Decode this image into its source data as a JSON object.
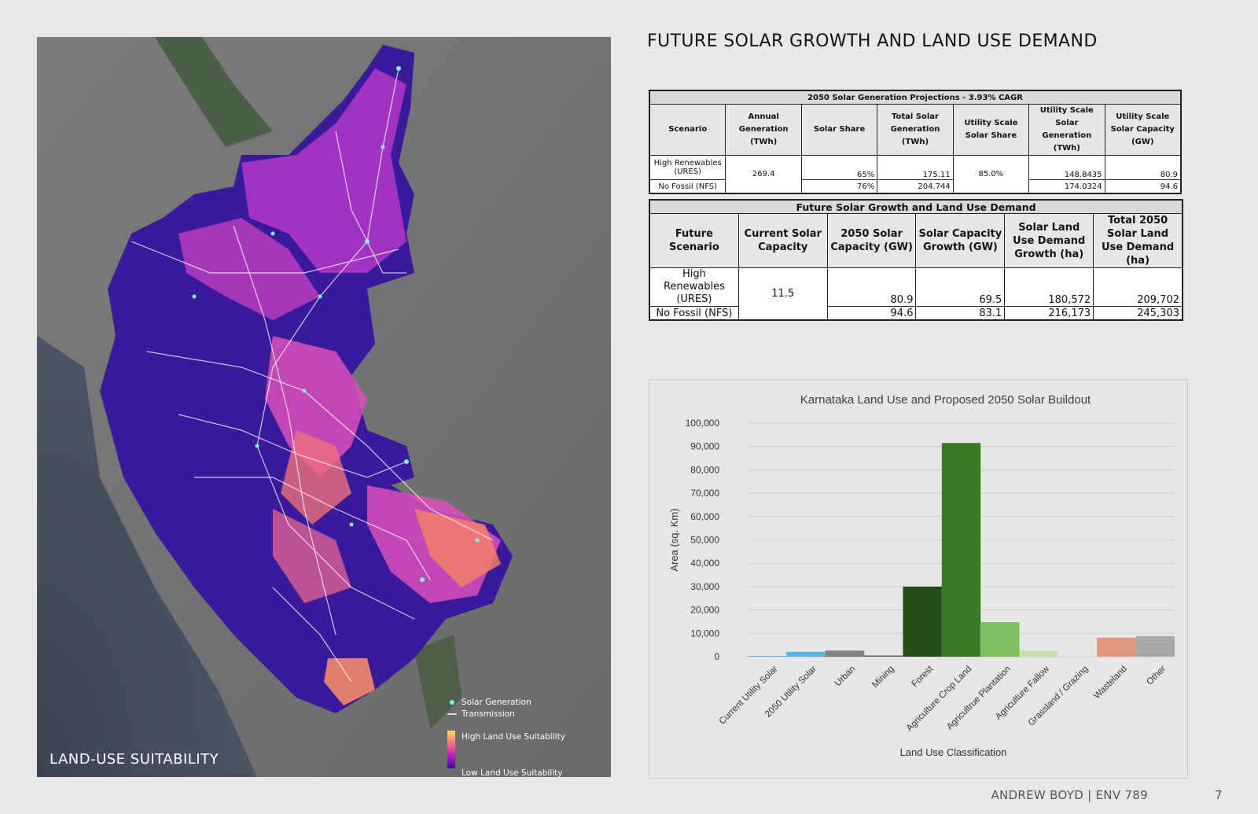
{
  "page": {
    "title": "FUTURE SOLAR GROWTH AND LAND USE DEMAND",
    "footer": "ANDREW BOYD | ENV 789",
    "page_number": "7"
  },
  "map": {
    "caption": "LAND-USE SUITABILITY",
    "legend": {
      "solar": "Solar Generation",
      "transmission": "Transmission",
      "high": "High Land Use Suitability",
      "low": "Low Land Use Suitability"
    }
  },
  "table1": {
    "caption": "2050 Solar Generation Projections - 3.93% CAGR",
    "headers": [
      "Scenario",
      "Annual Generation (TWh)",
      "Solar Share",
      "Total Solar Generation (TWh)",
      "Utility Scale Solar Share",
      "Utility Scale Solar Generation (TWh)",
      "Utility Scale Solar Capacity (GW)"
    ],
    "annual_generation": "269.4",
    "utility_share": "85.0%",
    "rows": [
      {
        "scenario": "High Renewables (URES)",
        "solar_share": "65%",
        "total_solar": "175.11",
        "utility_gen": "148.8435",
        "utility_cap": "80.9"
      },
      {
        "scenario": "No Fossil (NFS)",
        "solar_share": "76%",
        "total_solar": "204.744",
        "utility_gen": "174.0324",
        "utility_cap": "94.6"
      }
    ]
  },
  "table2": {
    "caption": "Future Solar Growth and Land Use Demand",
    "headers": [
      "Future Scenario",
      "Current Solar Capacity",
      "2050 Solar Capacity (GW)",
      "Solar Capacity Growth (GW)",
      "Solar Land Use Demand Growth (ha)",
      "Total 2050 Solar Land Use Demand (ha)"
    ],
    "current_capacity": "11.5",
    "rows": [
      {
        "scenario": "High Renewables (URES)",
        "capacity_2050": "80.9",
        "growth": "69.5",
        "land_growth": "180,572",
        "land_total": "209,702"
      },
      {
        "scenario": "No Fossil (NFS)",
        "capacity_2050": "94.6",
        "growth": "83.1",
        "land_growth": "216,173",
        "land_total": "245,303"
      }
    ]
  },
  "chart_data": {
    "type": "bar",
    "title": "Karnataka Land Use and Proposed 2050 Solar Buildout",
    "xlabel": "Land Use Classification",
    "ylabel": "Area (sq. Km)",
    "ylim": [
      0,
      100000
    ],
    "yticks": [
      0,
      10000,
      20000,
      30000,
      40000,
      50000,
      60000,
      70000,
      80000,
      90000,
      100000
    ],
    "ytick_labels": [
      "0",
      "10,000",
      "20,000",
      "30,000",
      "40,000",
      "50,000",
      "60,000",
      "70,000",
      "80,000",
      "90,000",
      "100,000"
    ],
    "grid": true,
    "categories": [
      "Current Utility Solar",
      "2050 Utility Solar",
      "Urban",
      "Mining",
      "Forest",
      "Agriculture Crop Land",
      "Agricultrue Plantation",
      "Agriculture Fallow",
      "Grassland / Grazing",
      "Wasteland",
      "Other"
    ],
    "values": [
      300,
      2100,
      2600,
      500,
      30000,
      91500,
      14800,
      2700,
      150,
      8100,
      8800
    ],
    "colors": [
      "#5aa9d6",
      "#5ab4e0",
      "#808080",
      "#606060",
      "#254d18",
      "#3b7a25",
      "#7cc05e",
      "#c6e0b4",
      "#d4e8c6",
      "#e0987a",
      "#a8a8a8"
    ]
  }
}
